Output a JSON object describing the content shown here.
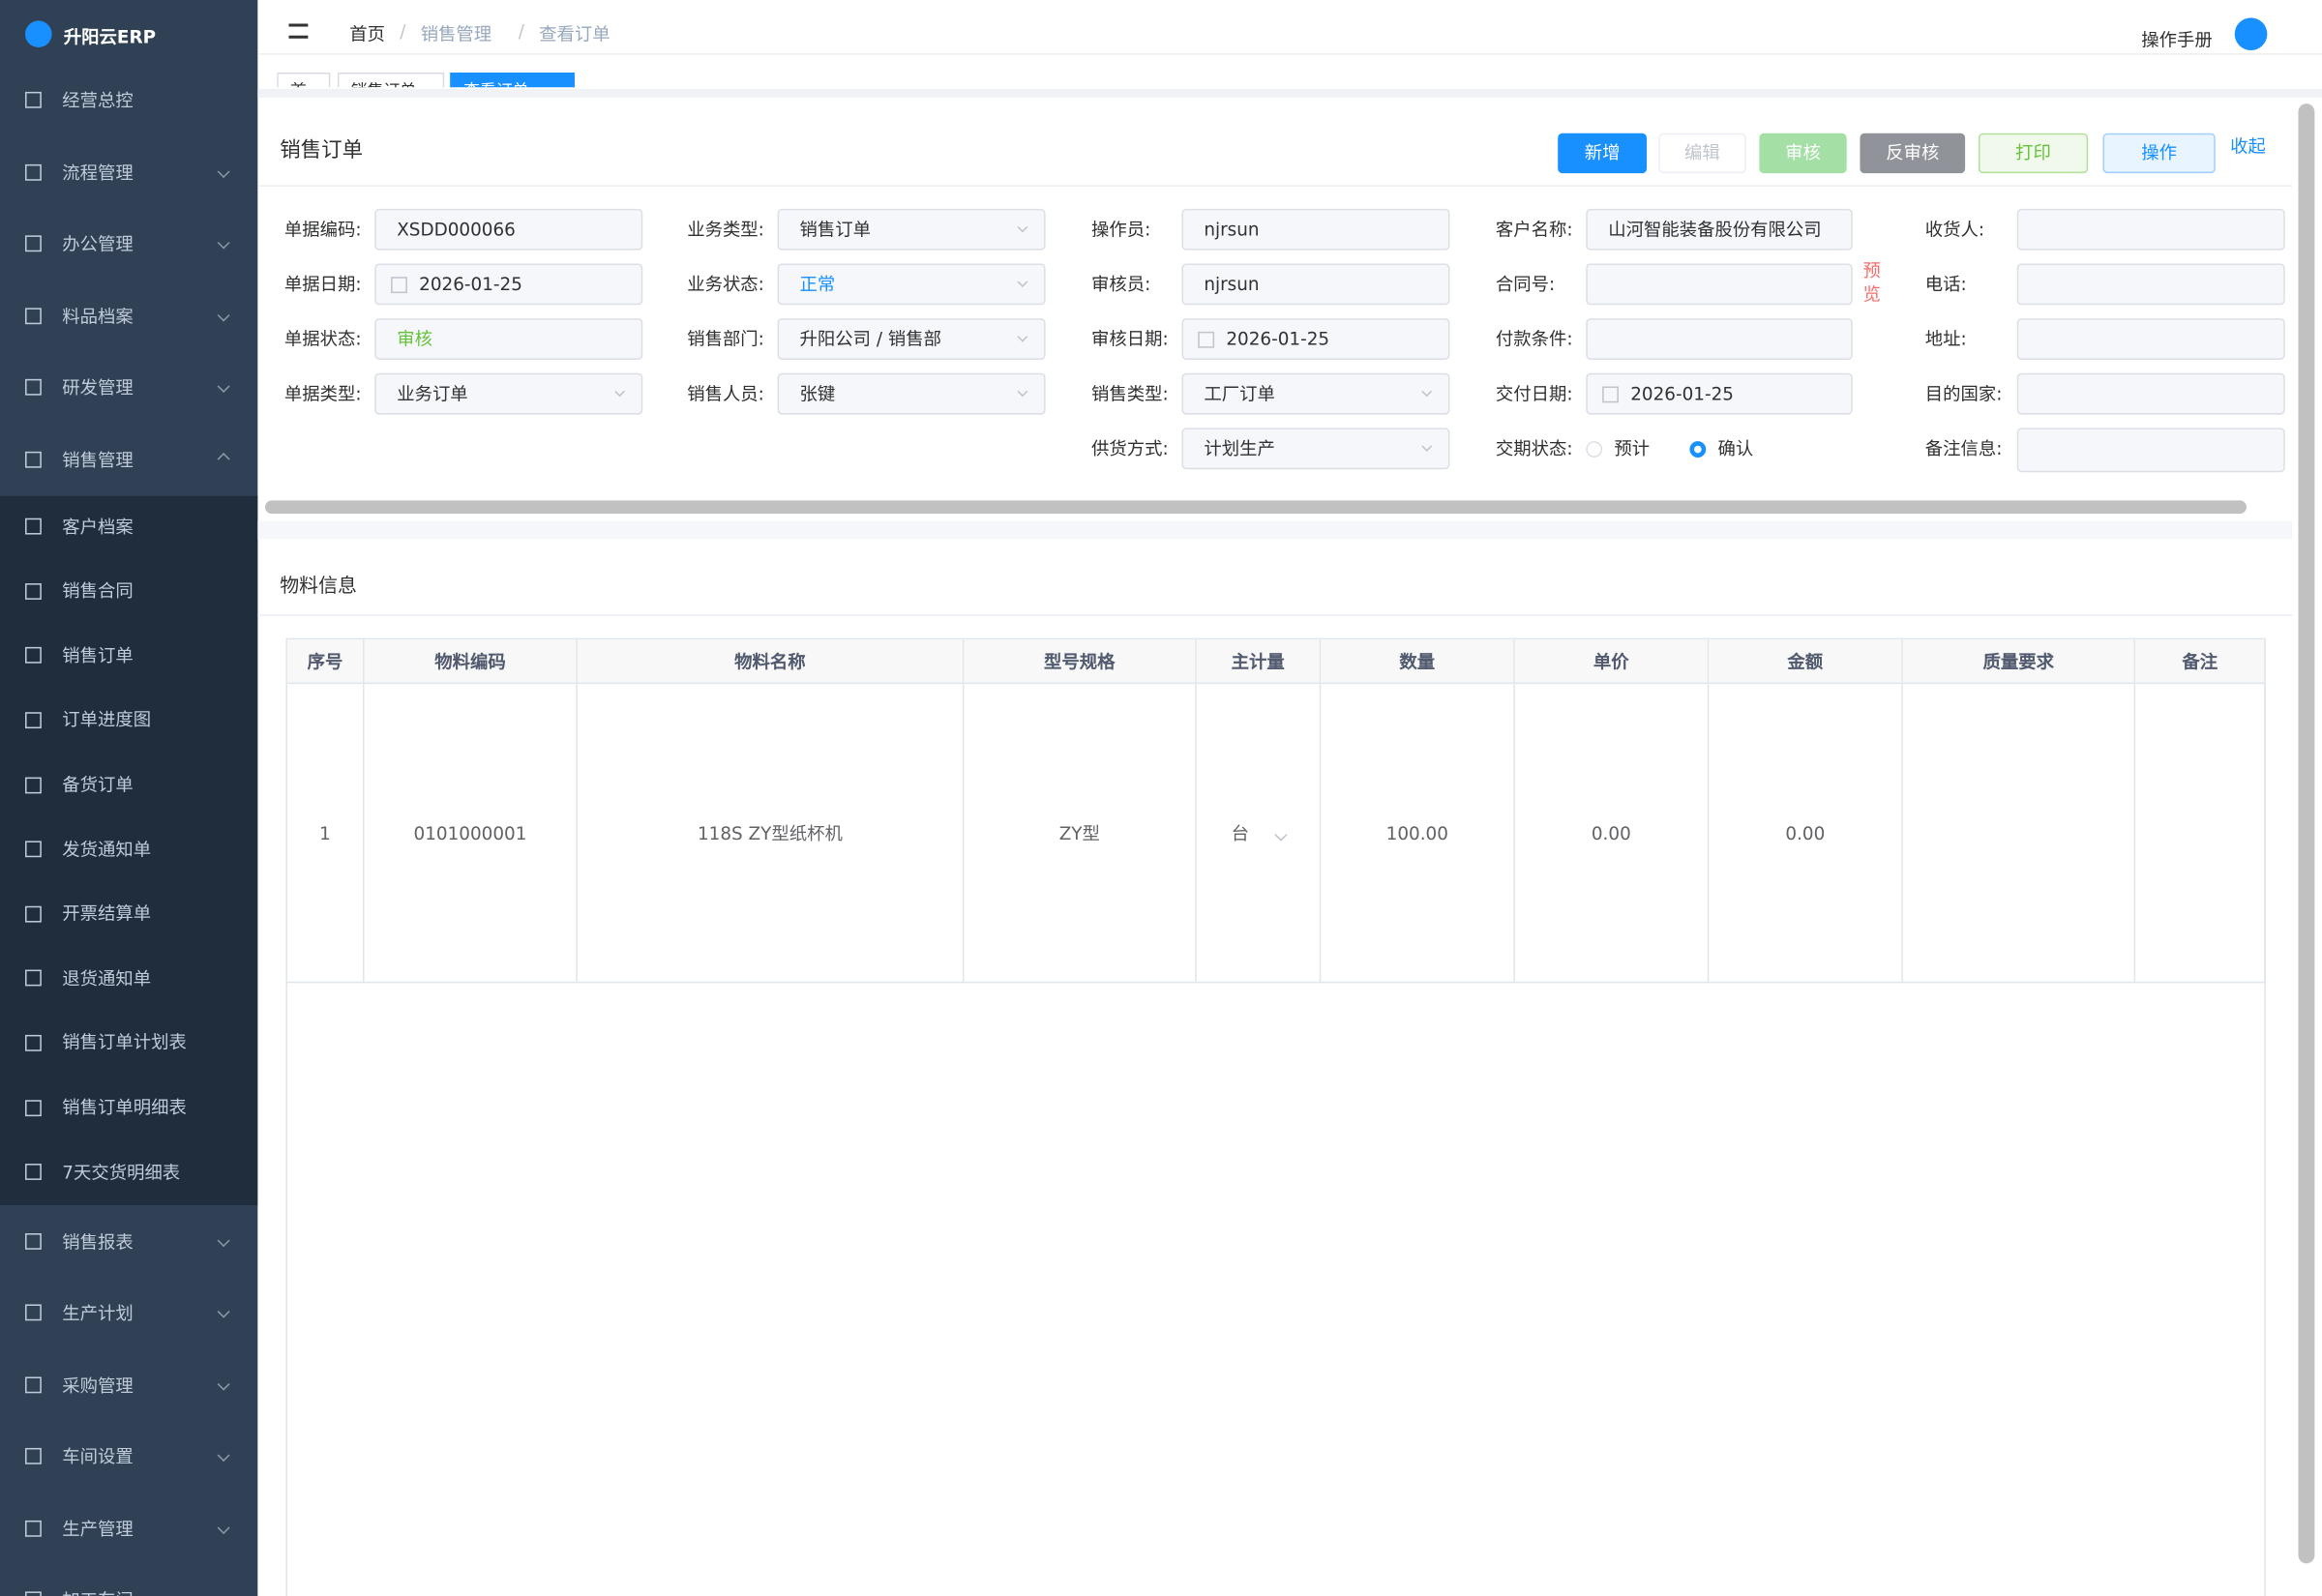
{
  "sidebar": {
    "logo": "升阳云ERP",
    "menu": [
      {
        "label": "经营总控",
        "arrow": false
      },
      {
        "label": "流程管理",
        "arrow": true
      },
      {
        "label": "办公管理",
        "arrow": true
      },
      {
        "label": "料品档案",
        "arrow": true
      },
      {
        "label": "研发管理",
        "arrow": true
      },
      {
        "label": "销售管理",
        "arrow": true,
        "open": true,
        "children": [
          "客户档案",
          "销售合同",
          "销售订单",
          "订单进度图",
          "备货订单",
          "发货通知单",
          "开票结算单",
          "退货通知单",
          "销售订单计划表",
          "销售订单明细表",
          "7天交货明细表"
        ]
      },
      {
        "label": "销售报表",
        "arrow": true
      },
      {
        "label": "生产计划",
        "arrow": true
      },
      {
        "label": "采购管理",
        "arrow": true
      },
      {
        "label": "车间设置",
        "arrow": true
      },
      {
        "label": "生产管理",
        "arrow": true
      },
      {
        "label": "加工车间",
        "arrow": true
      }
    ]
  },
  "header": {
    "breadcrumb": [
      "首页",
      "销售管理",
      "查看订单"
    ],
    "manual": "操作手册",
    "tabs": [
      "首页",
      "销售订单",
      "查看订单"
    ]
  },
  "form": {
    "title": "销售订单",
    "collapse": "收起",
    "buttons": [
      {
        "label": "新增",
        "style": "primary"
      },
      {
        "label": "编辑",
        "style": "disabled"
      },
      {
        "label": "审核",
        "style": "success-disabled"
      },
      {
        "label": "反审核",
        "style": "info"
      },
      {
        "label": "打印",
        "style": "plain-success"
      },
      {
        "label": "操作",
        "style": "plain-primary"
      }
    ],
    "columns": [
      {
        "fields": [
          {
            "label": "单据编码:",
            "value": "XSDD000066"
          },
          {
            "label": "单据日期:",
            "value": "2026-01-25",
            "date": true
          },
          {
            "label": "单据状态:",
            "value": "审核",
            "color": "#67c23a"
          },
          {
            "label": "单据类型:",
            "value": "业务订单",
            "select": true
          }
        ]
      },
      {
        "fields": [
          {
            "label": "业务类型:",
            "value": "销售订单",
            "select": true
          },
          {
            "label": "业务状态:",
            "value": "正常",
            "select": true,
            "color": "#1890ff"
          },
          {
            "label": "销售部门:",
            "value": "升阳公司 / 销售部",
            "select": true
          },
          {
            "label": "销售人员:",
            "value": "张键",
            "select": true
          }
        ]
      },
      {
        "fields": [
          {
            "label": "操作员:",
            "value": "njrsun"
          },
          {
            "label": "审核员:",
            "value": "njrsun"
          },
          {
            "label": "审核日期:",
            "value": "2026-01-25",
            "date": true
          },
          {
            "label": "销售类型:",
            "value": "工厂订单",
            "select": true
          },
          {
            "label": "供货方式:",
            "value": "计划生产",
            "select": true
          }
        ]
      },
      {
        "fields": [
          {
            "label": "客户名称:",
            "value": "山河智能装备股份有限公司"
          },
          {
            "label": "合同号:",
            "link": "预览"
          },
          {
            "label": "付款条件:"
          },
          {
            "label": "交付日期:",
            "value": "2026-01-25",
            "date": true
          },
          {
            "label": "交期状态:",
            "options": [
              "预计",
              "确认"
            ],
            "selected": "确认"
          }
        ]
      },
      {
        "fields": [
          {
            "label": "收货人:"
          },
          {
            "label": "电话:"
          },
          {
            "label": "地址:"
          },
          {
            "label": "目的国家:"
          },
          {
            "label": "备注信息:",
            "textarea": true
          }
        ]
      }
    ]
  },
  "table": {
    "title": "物料信息",
    "headers": [
      "序号",
      "物料编码",
      "物料名称",
      "型号规格",
      "主计量",
      "数量",
      "单价",
      "金额",
      "质量要求",
      "备注"
    ],
    "rows": [
      [
        "1",
        "0101000001",
        "118S ZY型纸杯机",
        "ZY型",
        "台",
        "100.00",
        "0.00",
        "0.00"
      ]
    ]
  }
}
